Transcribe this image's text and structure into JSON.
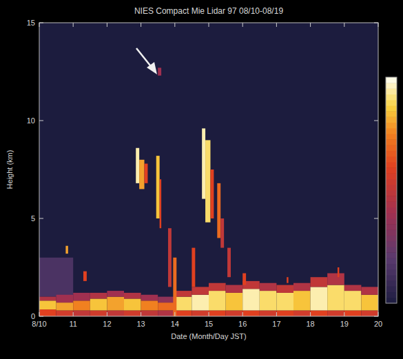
{
  "chart_data": {
    "type": "heatmap",
    "title": "NIES Compact Mie Lidar 97 08/10-08/19",
    "x_label": "Date (Month/Day JST)",
    "y_label": "Height (km)",
    "xlim": [
      10,
      20
    ],
    "ylim": [
      0,
      15
    ],
    "xticks": [
      {
        "value": 10,
        "label": "8/10"
      },
      11,
      12,
      13,
      14,
      15,
      16,
      17,
      18,
      19,
      20
    ],
    "yticks": [
      0,
      5,
      10,
      15
    ],
    "colorbar": {
      "range": [
        0,
        1
      ]
    },
    "cells": [
      [
        10.0,
        11.0,
        1.0,
        3.0,
        0.15
      ],
      [
        10.0,
        10.5,
        0,
        0.35,
        0.6
      ],
      [
        10.0,
        10.5,
        0.35,
        0.8,
        0.85
      ],
      [
        10.0,
        10.5,
        0.8,
        1.0,
        0.45
      ],
      [
        10.5,
        11.0,
        0,
        0.3,
        0.55
      ],
      [
        10.5,
        11.0,
        0.3,
        0.7,
        0.8
      ],
      [
        10.5,
        11.0,
        0.7,
        1.1,
        0.4
      ],
      [
        11.0,
        11.5,
        0,
        0.3,
        0.5
      ],
      [
        11.0,
        11.5,
        0.3,
        0.8,
        0.75
      ],
      [
        11.0,
        11.5,
        0.8,
        1.2,
        0.4
      ],
      [
        11.5,
        12.0,
        0,
        0.3,
        0.55
      ],
      [
        11.5,
        12.0,
        0.3,
        0.9,
        0.85
      ],
      [
        11.5,
        12.0,
        0.9,
        1.2,
        0.45
      ],
      [
        12.0,
        12.5,
        0,
        0.3,
        0.5
      ],
      [
        12.0,
        12.5,
        0.3,
        1.0,
        0.8
      ],
      [
        12.0,
        12.5,
        1.0,
        1.3,
        0.4
      ],
      [
        12.5,
        13.0,
        0,
        0.3,
        0.55
      ],
      [
        12.5,
        13.0,
        0.3,
        0.9,
        0.85
      ],
      [
        12.5,
        13.0,
        0.9,
        1.2,
        0.45
      ],
      [
        13.0,
        13.5,
        0,
        0.3,
        0.5
      ],
      [
        13.0,
        13.5,
        0.3,
        0.8,
        0.75
      ],
      [
        13.0,
        13.5,
        0.8,
        1.1,
        0.4
      ],
      [
        13.5,
        14.0,
        0,
        0.3,
        0.45
      ],
      [
        13.5,
        14.0,
        0.3,
        0.7,
        0.7
      ],
      [
        13.5,
        14.0,
        0.7,
        1.0,
        0.35
      ],
      [
        14.0,
        14.5,
        0,
        0.3,
        0.6
      ],
      [
        14.0,
        14.5,
        0.3,
        1.0,
        0.9
      ],
      [
        14.0,
        14.5,
        1.0,
        1.3,
        0.5
      ],
      [
        14.5,
        15.0,
        0,
        0.3,
        0.55
      ],
      [
        14.5,
        15.0,
        0.3,
        1.1,
        0.95
      ],
      [
        14.5,
        15.0,
        1.1,
        1.5,
        0.5
      ],
      [
        15.0,
        15.5,
        0,
        0.3,
        0.6
      ],
      [
        15.0,
        15.5,
        0.3,
        1.3,
        0.9
      ],
      [
        15.0,
        15.5,
        1.3,
        1.7,
        0.5
      ],
      [
        15.5,
        16.0,
        0,
        0.3,
        0.55
      ],
      [
        15.5,
        16.0,
        0.3,
        1.2,
        0.85
      ],
      [
        15.5,
        16.0,
        1.2,
        1.6,
        0.45
      ],
      [
        16.0,
        16.5,
        0,
        0.3,
        0.6
      ],
      [
        16.0,
        16.5,
        0.3,
        1.4,
        0.95
      ],
      [
        16.0,
        16.5,
        1.4,
        1.8,
        0.5
      ],
      [
        16.5,
        17.0,
        0,
        0.3,
        0.55
      ],
      [
        16.5,
        17.0,
        0.3,
        1.3,
        0.9
      ],
      [
        16.5,
        17.0,
        1.3,
        1.7,
        0.45
      ],
      [
        17.0,
        17.5,
        0,
        0.3,
        0.6
      ],
      [
        17.0,
        17.5,
        0.3,
        1.2,
        0.9
      ],
      [
        17.0,
        17.5,
        1.2,
        1.6,
        0.5
      ],
      [
        17.5,
        18.0,
        0,
        0.3,
        0.55
      ],
      [
        17.5,
        18.0,
        0.3,
        1.3,
        0.85
      ],
      [
        17.5,
        18.0,
        1.3,
        1.7,
        0.45
      ],
      [
        18.0,
        18.5,
        0,
        0.3,
        0.6
      ],
      [
        18.0,
        18.5,
        0.3,
        1.5,
        0.95
      ],
      [
        18.0,
        18.5,
        1.5,
        2.0,
        0.5
      ],
      [
        18.5,
        19.0,
        0,
        0.3,
        0.55
      ],
      [
        18.5,
        19.0,
        0.3,
        1.6,
        0.9
      ],
      [
        18.5,
        19.0,
        1.6,
        2.2,
        0.45
      ],
      [
        19.0,
        19.5,
        0,
        0.3,
        0.6
      ],
      [
        19.0,
        19.5,
        0.3,
        1.3,
        0.9
      ],
      [
        19.0,
        19.5,
        1.3,
        1.6,
        0.45
      ],
      [
        19.5,
        20.0,
        0,
        0.3,
        0.55
      ],
      [
        19.5,
        20.0,
        0.3,
        1.1,
        0.85
      ],
      [
        19.5,
        20.0,
        1.1,
        1.5,
        0.45
      ],
      [
        10.78,
        10.85,
        3.2,
        3.6,
        0.8
      ],
      [
        11.3,
        11.4,
        1.8,
        2.3,
        0.6
      ],
      [
        12.85,
        12.95,
        6.8,
        8.6,
        0.95
      ],
      [
        12.95,
        13.1,
        6.5,
        8.0,
        0.8
      ],
      [
        13.1,
        13.2,
        6.8,
        7.8,
        0.6
      ],
      [
        13.45,
        13.55,
        5.0,
        8.2,
        0.85
      ],
      [
        13.55,
        13.6,
        4.5,
        7.0,
        0.6
      ],
      [
        13.8,
        13.9,
        1.5,
        4.5,
        0.5
      ],
      [
        13.95,
        14.05,
        0,
        3.0,
        0.7
      ],
      [
        14.5,
        14.6,
        1.5,
        3.5,
        0.6
      ],
      [
        14.8,
        14.9,
        6.0,
        9.6,
        0.95
      ],
      [
        14.9,
        15.05,
        4.8,
        9.0,
        0.9
      ],
      [
        15.05,
        15.15,
        5.0,
        7.5,
        0.6
      ],
      [
        15.25,
        15.35,
        4.0,
        6.8,
        0.7
      ],
      [
        15.35,
        15.45,
        3.5,
        5.0,
        0.5
      ],
      [
        15.55,
        15.65,
        2.0,
        3.5,
        0.5
      ],
      [
        13.5,
        13.6,
        12.3,
        12.7,
        0.4
      ],
      [
        16.0,
        16.1,
        1.6,
        2.2,
        0.6
      ],
      [
        17.3,
        17.35,
        1.7,
        2.0,
        0.6
      ],
      [
        18.8,
        18.85,
        2.0,
        2.5,
        0.6
      ]
    ]
  }
}
